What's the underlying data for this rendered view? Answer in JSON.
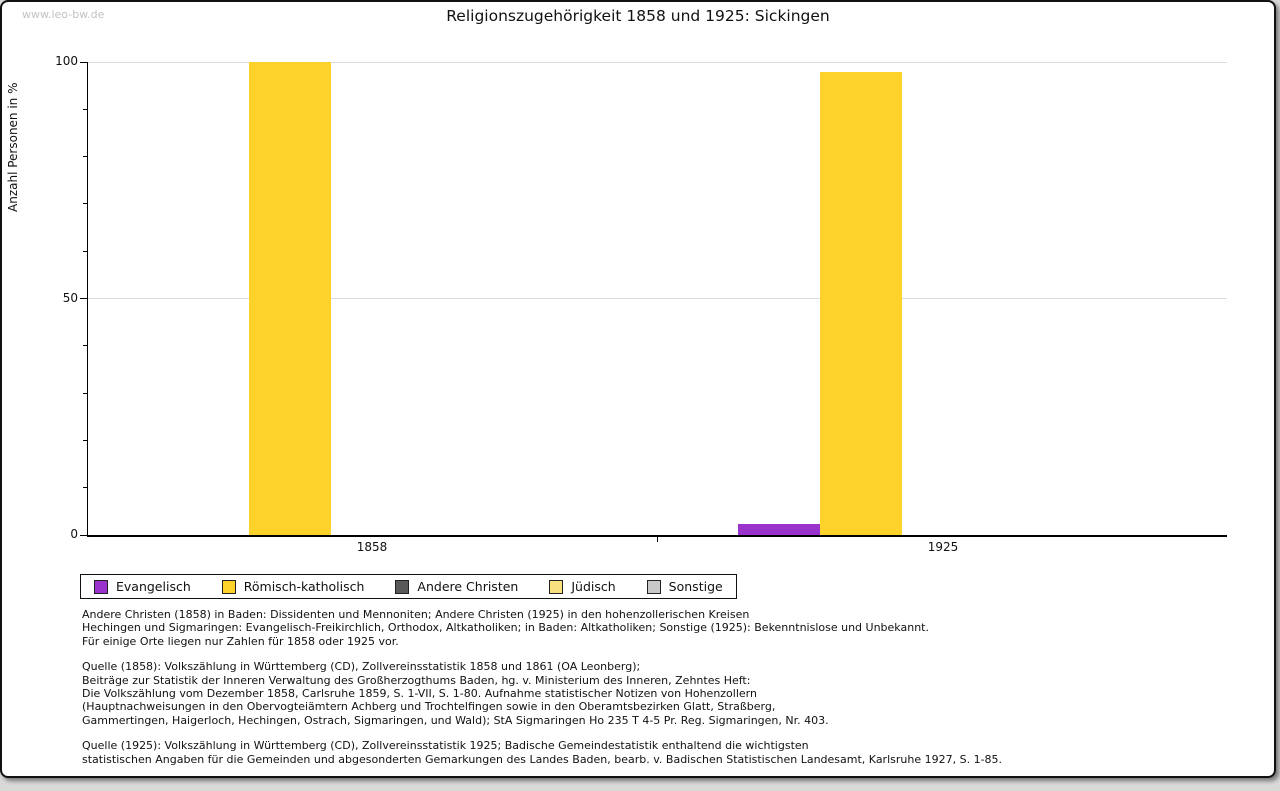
{
  "watermark": "www.leo-bw.de",
  "title": "Religionszugehörigkeit 1858 und 1925: Sickingen",
  "chart_data": {
    "type": "bar",
    "title": "Religionszugehörigkeit 1858 und 1925: Sickingen",
    "ylabel": "Anzahl Personen in %",
    "xlabel": "",
    "ylim": [
      0,
      100
    ],
    "ytick_labels": [
      "0",
      "50",
      "100"
    ],
    "ytick_values": [
      0,
      50,
      100
    ],
    "ytick_minor_values": [
      10,
      20,
      30,
      40,
      60,
      70,
      80,
      90
    ],
    "gridline_values": [
      50,
      100
    ],
    "grid": "horizontal-only",
    "legend_position": "bottom-left-boxed",
    "categories": [
      "1858",
      "1925"
    ],
    "series": [
      {
        "name": "Evangelisch",
        "color": "#9933cc",
        "values": [
          0,
          2.3
        ]
      },
      {
        "name": "Römisch-katholisch",
        "color": "#fcd22b",
        "values": [
          100,
          97.9
        ]
      },
      {
        "name": "Andere Christen",
        "color": "#595959",
        "values": [
          0,
          0
        ]
      },
      {
        "name": "Jüdisch",
        "color": "#f7e07e",
        "values": [
          0,
          0
        ]
      },
      {
        "name": "Sonstige",
        "color": "#c8c8c8",
        "values": [
          0,
          0
        ]
      }
    ]
  },
  "colors": {
    "gridline": "#dcdcdc",
    "axis": "#000000",
    "watermark": "#c2c2c2",
    "text": "#111111"
  },
  "notes": {
    "para1": [
      "Andere Christen (1858) in Baden: Dissidenten und Mennoniten; Andere Christen (1925) in den hohenzollerischen Kreisen",
      "Hechingen und Sigmaringen: Evangelisch-Freikirchlich, Orthodox, Altkatholiken; in Baden: Altkatholiken; Sonstige (1925): Bekenntnislose und Unbekannt.",
      "Für einige Orte liegen nur Zahlen für 1858 oder 1925 vor."
    ],
    "para2": [
      "Quelle (1858): Volkszählung in Württemberg (CD), Zollvereinsstatistik 1858 und 1861 (OA Leonberg);",
      "Beiträge zur Statistik der Inneren Verwaltung des Großherzogthums Baden, hg. v. Ministerium des Inneren, Zehntes Heft:",
      "Die Volkszählung vom Dezember 1858, Carlsruhe 1859, S. 1-VII, S. 1-80. Aufnahme statistischer Notizen von Hohenzollern",
      "(Hauptnachweisungen in den Obervogteiämtern Achberg und Trochtelfingen sowie in den Oberamtsbezirken Glatt, Straßberg,",
      "Gammertingen, Haigerloch, Hechingen, Ostrach, Sigmaringen, und Wald); StA Sigmaringen Ho 235 T 4-5 Pr. Reg. Sigmaringen, Nr. 403."
    ],
    "para3": [
      "Quelle (1925): Volkszählung in Württemberg (CD), Zollvereinsstatistik 1925; Badische Gemeindestatistik enthaltend die wichtigsten",
      "statistischen Angaben für die Gemeinden und abgesonderten Gemarkungen des Landes Baden, bearb. v. Badischen Statistischen Landesamt, Karlsruhe 1927, S. 1-85."
    ]
  }
}
